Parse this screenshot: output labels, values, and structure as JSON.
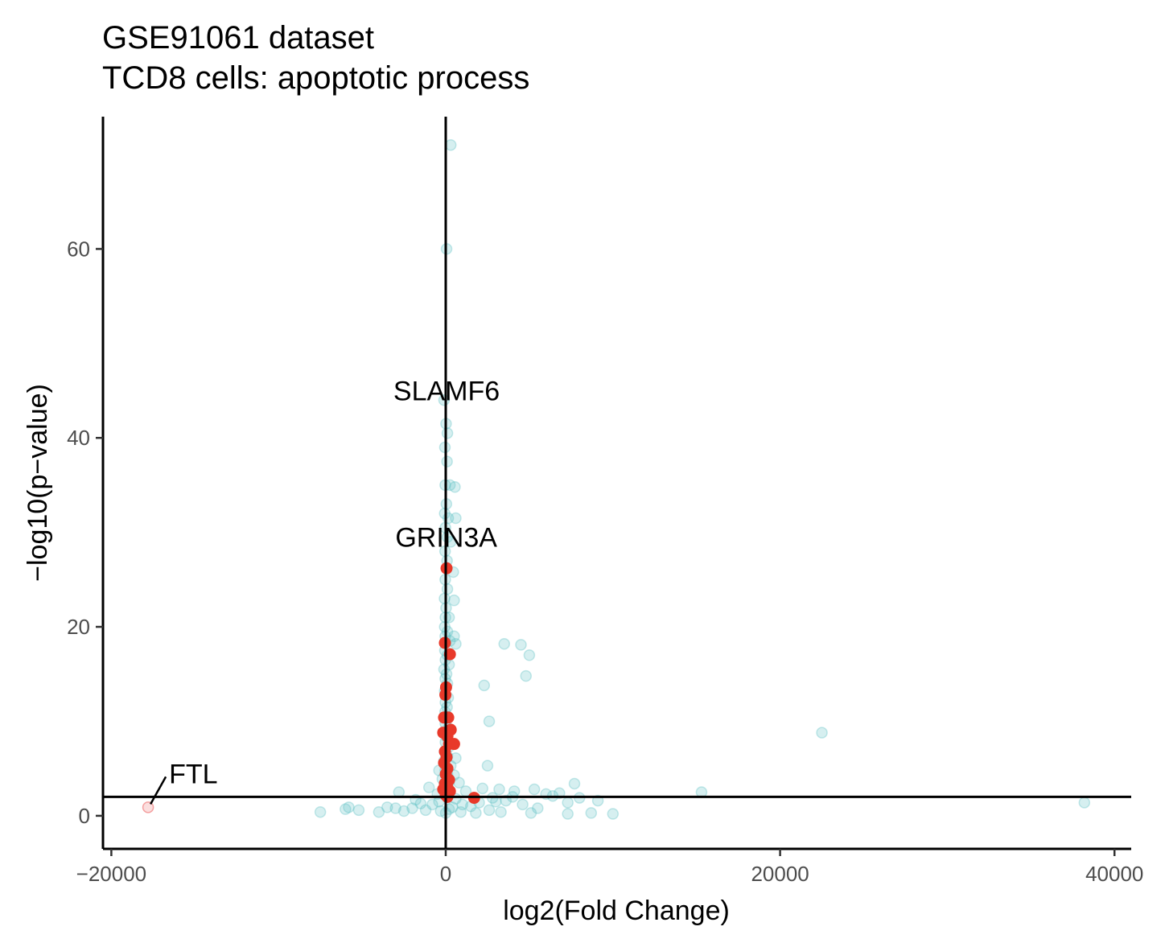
{
  "chart_data": {
    "type": "scatter",
    "title": "GSE91061 dataset",
    "subtitle": "TCD8 cells: apoptotic process",
    "xlabel": "log2(Fold Change)",
    "ylabel": "−log10(p−value)",
    "xlim": [
      -20500,
      41000
    ],
    "ylim": [
      -3.5,
      74
    ],
    "xticks": [
      -20000,
      0,
      20000,
      40000
    ],
    "xtick_labels": [
      "−20000",
      "0",
      "20000",
      "40000"
    ],
    "yticks": [
      0,
      20,
      40,
      60
    ],
    "ytick_labels": [
      "0",
      "20",
      "40",
      "60"
    ],
    "grid": false,
    "legend": "none",
    "reference_lines": {
      "vertical_x": 0,
      "horizontal_y": 2
    },
    "colors": {
      "background_genes": "#5bc0c4",
      "highlighted_genes": "#e8392a",
      "faded_highlight": "#f4a0a0",
      "lines": "#000000"
    },
    "series": [
      {
        "points": [
          [
            300,
            71
          ],
          [
            50,
            60
          ],
          [
            -100,
            44
          ],
          [
            20,
            41.5
          ],
          [
            100,
            40.5
          ],
          [
            -50,
            39
          ],
          [
            80,
            37.5
          ],
          [
            -30,
            35
          ],
          [
            250,
            35
          ],
          [
            550,
            34.8
          ],
          [
            40,
            33
          ],
          [
            -60,
            32
          ],
          [
            150,
            31.5
          ],
          [
            600,
            31.5
          ],
          [
            -20,
            30.5
          ],
          [
            100,
            29.5
          ],
          [
            300,
            29
          ],
          [
            -40,
            28
          ],
          [
            80,
            27
          ],
          [
            450,
            25.8
          ],
          [
            -30,
            25
          ],
          [
            100,
            24
          ],
          [
            -70,
            23
          ],
          [
            500,
            22.8
          ],
          [
            20,
            22
          ],
          [
            -20,
            21
          ],
          [
            200,
            21
          ],
          [
            -60,
            20
          ],
          [
            100,
            19.5
          ],
          [
            -30,
            19
          ],
          [
            500,
            19
          ],
          [
            250,
            18.5
          ],
          [
            600,
            18.2
          ],
          [
            3500,
            18.2
          ],
          [
            4500,
            18.1
          ],
          [
            -50,
            17.5
          ],
          [
            100,
            17
          ],
          [
            5000,
            17
          ],
          [
            -20,
            16.5
          ],
          [
            200,
            16
          ],
          [
            -100,
            15.5
          ],
          [
            50,
            15
          ],
          [
            4800,
            14.8
          ],
          [
            -30,
            14.5
          ],
          [
            100,
            14
          ],
          [
            2300,
            13.8
          ],
          [
            -60,
            13.2
          ],
          [
            150,
            12.5
          ],
          [
            -20,
            12
          ],
          [
            80,
            11.5
          ],
          [
            -40,
            11
          ],
          [
            100,
            10.5
          ],
          [
            2600,
            10
          ],
          [
            -30,
            9.8
          ],
          [
            150,
            9.3
          ],
          [
            -50,
            8.8
          ],
          [
            22500,
            8.8
          ],
          [
            80,
            8.3
          ],
          [
            -20,
            7.8
          ],
          [
            200,
            7.3
          ],
          [
            -60,
            6.8
          ],
          [
            100,
            6.3
          ],
          [
            600,
            6.1
          ],
          [
            -100,
            5.8
          ],
          [
            300,
            5.3
          ],
          [
            2500,
            5.3
          ],
          [
            -30,
            4.8
          ],
          [
            -400,
            4.8
          ],
          [
            100,
            4.4
          ],
          [
            500,
            4.3
          ],
          [
            -200,
            3.9
          ],
          [
            200,
            3.6
          ],
          [
            800,
            3.5
          ],
          [
            7700,
            3.4
          ],
          [
            -1000,
            3.0
          ],
          [
            2200,
            2.9
          ],
          [
            3200,
            2.8
          ],
          [
            5300,
            2.8
          ],
          [
            15300,
            2.5
          ],
          [
            -2800,
            2.5
          ],
          [
            1200,
            2.6
          ],
          [
            4100,
            2.6
          ],
          [
            6000,
            2.3
          ],
          [
            6400,
            2.1
          ],
          [
            9100,
            1.6
          ],
          [
            4000,
            2.0
          ],
          [
            8000,
            1.9
          ],
          [
            3000,
            1.5
          ],
          [
            2000,
            1.4
          ],
          [
            38200,
            1.4
          ],
          [
            7300,
            1.4
          ],
          [
            -1500,
            1.3
          ],
          [
            1000,
            1.2
          ],
          [
            -5800,
            0.9
          ],
          [
            -3000,
            0.8
          ],
          [
            -5200,
            0.6
          ],
          [
            -2000,
            0.8
          ],
          [
            5500,
            0.8
          ],
          [
            -7500,
            0.4
          ],
          [
            -4000,
            0.4
          ],
          [
            3300,
            0.4
          ],
          [
            8700,
            0.3
          ],
          [
            10000,
            0.2
          ],
          [
            5100,
            0.3
          ],
          [
            7300,
            0.2
          ],
          [
            -400,
            1.5
          ],
          [
            -800,
            1.2
          ],
          [
            -1200,
            0.6
          ],
          [
            400,
            0.9
          ],
          [
            -2500,
            0.5
          ],
          [
            1500,
            1.0
          ],
          [
            600,
            1.8
          ],
          [
            -500,
            2.3
          ],
          [
            0,
            0.3
          ],
          [
            200,
            0.7
          ],
          [
            -300,
            0.5
          ],
          [
            900,
            0.4
          ],
          [
            2800,
            1.9
          ],
          [
            3600,
            1.6
          ],
          [
            6800,
            2.4
          ],
          [
            4600,
            1.2
          ],
          [
            -1800,
            1.7
          ],
          [
            -3500,
            0.9
          ],
          [
            -6000,
            0.7
          ],
          [
            1800,
            0.3
          ],
          [
            2600,
            0.6
          ]
        ]
      },
      {
        "points": [
          [
            50,
            26.2
          ],
          [
            -50,
            18.3
          ],
          [
            250,
            17.1
          ],
          [
            20,
            13.6
          ],
          [
            -20,
            12.8
          ],
          [
            -100,
            10.4
          ],
          [
            150,
            10.4
          ],
          [
            300,
            9.1
          ],
          [
            -150,
            8.8
          ],
          [
            100,
            8.4
          ],
          [
            500,
            7.6
          ],
          [
            200,
            7.6
          ],
          [
            -50,
            6.8
          ],
          [
            50,
            6.2
          ],
          [
            -100,
            5.6
          ],
          [
            100,
            5.0
          ],
          [
            0,
            4.4
          ],
          [
            200,
            3.8
          ],
          [
            -50,
            3.4
          ],
          [
            100,
            3.0
          ],
          [
            -150,
            2.8
          ],
          [
            250,
            2.6
          ],
          [
            1700,
            1.9
          ],
          [
            0,
            2.2
          ],
          [
            100,
            2.0
          ]
        ]
      },
      {
        "points": [
          [
            -17800,
            0.9
          ]
        ]
      }
    ],
    "annotations": [
      {
        "text": "SLAMF6",
        "x": 50,
        "y": 45
      },
      {
        "text": "GRIN3A",
        "x": 30,
        "y": 29.5
      },
      {
        "text": "FTL",
        "x": -17800,
        "y": 0.9
      }
    ]
  }
}
